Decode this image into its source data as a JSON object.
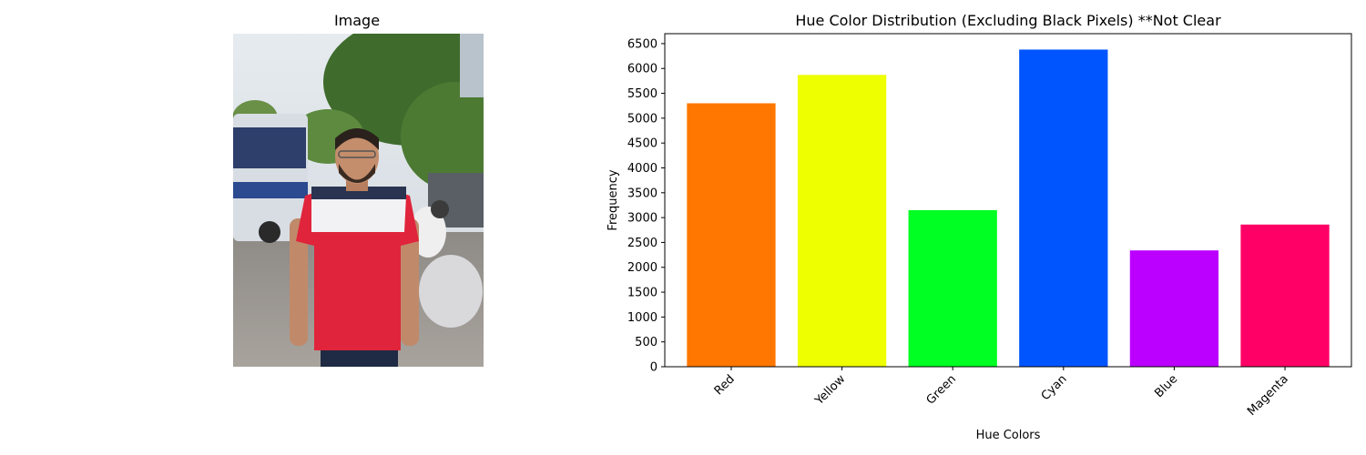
{
  "image_panel": {
    "title": "Image"
  },
  "chart_data": {
    "type": "bar",
    "title": "Hue Color Distribution (Excluding Black Pixels) **Not Clear",
    "xlabel": "Hue Colors",
    "ylabel": "Frequency",
    "categories": [
      "Red",
      "Yellow",
      "Green",
      "Cyan",
      "Blue",
      "Magenta"
    ],
    "values": [
      5300,
      5870,
      3150,
      6380,
      2340,
      2860
    ],
    "colors": [
      "#ff7700",
      "#eeff00",
      "#00ff22",
      "#0055ff",
      "#bb00ff",
      "#ff0066"
    ],
    "ylim": [
      0,
      6700
    ],
    "yticks": [
      0,
      500,
      1000,
      1500,
      2000,
      2500,
      3000,
      3500,
      4000,
      4500,
      5000,
      5500,
      6000,
      6500
    ],
    "grid": false,
    "legend": "none"
  }
}
